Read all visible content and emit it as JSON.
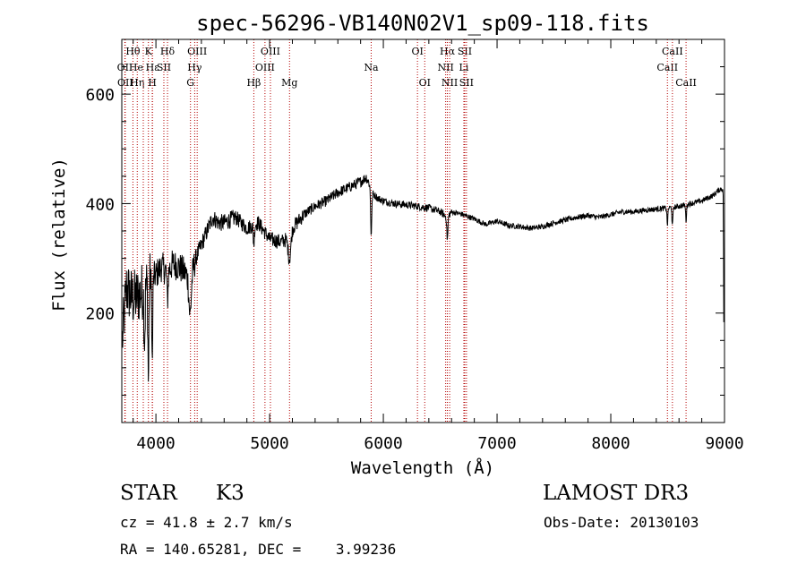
{
  "chart_data": {
    "type": "line",
    "title": "spec-56296-VB140N02V1_sp09-118.fits",
    "xlabel": "Wavelength (Å)",
    "ylabel": "Flux (relative)",
    "xlim": [
      3700,
      9000
    ],
    "ylim": [
      0,
      700
    ],
    "x_ticks": [
      {
        "value": 4000,
        "label": "4000"
      },
      {
        "value": 5000,
        "label": "5000"
      },
      {
        "value": 6000,
        "label": "6000"
      },
      {
        "value": 7000,
        "label": "7000"
      },
      {
        "value": 8000,
        "label": "8000"
      },
      {
        "value": 9000,
        "label": "9000"
      }
    ],
    "y_ticks": [
      {
        "value": 200,
        "label": "200"
      },
      {
        "value": 400,
        "label": "400"
      },
      {
        "value": 600,
        "label": "600"
      }
    ],
    "grid": false,
    "spectrum_anchors": {
      "wavelength": [
        3705,
        3740,
        3800,
        3860,
        3900,
        3950,
        4000,
        4050,
        4100,
        4150,
        4200,
        4250,
        4290,
        4300,
        4350,
        4400,
        4450,
        4500,
        4550,
        4600,
        4700,
        4800,
        4900,
        5000,
        5100,
        5150,
        5200,
        5300,
        5400,
        5500,
        5600,
        5700,
        5800,
        5850,
        5880,
        5900,
        5950,
        6000,
        6100,
        6200,
        6300,
        6400,
        6500,
        6560,
        6600,
        6700,
        6800,
        6900,
        7000,
        7100,
        7200,
        7300,
        7400,
        7500,
        7600,
        7700,
        7800,
        7900,
        8000,
        8100,
        8200,
        8300,
        8400,
        8500,
        8600,
        8700,
        8800,
        8900,
        8950,
        8995
      ],
      "flux": [
        150,
        245,
        225,
        235,
        245,
        260,
        270,
        285,
        275,
        290,
        285,
        275,
        265,
        255,
        300,
        325,
        350,
        375,
        365,
        365,
        375,
        355,
        365,
        335,
        330,
        335,
        355,
        380,
        395,
        405,
        420,
        430,
        440,
        448,
        435,
        420,
        410,
        405,
        400,
        398,
        395,
        392,
        385,
        375,
        385,
        380,
        372,
        362,
        368,
        360,
        358,
        355,
        358,
        365,
        370,
        375,
        378,
        375,
        380,
        385,
        385,
        388,
        390,
        392,
        395,
        400,
        405,
        415,
        425,
        428
      ]
    },
    "spectrum_features": [
      {
        "center": 3934,
        "depth": 180,
        "width": 4
      },
      {
        "center": 3968,
        "depth": 160,
        "width": 4
      },
      {
        "center": 3900,
        "depth": 90,
        "width": 5
      },
      {
        "center": 4102,
        "depth": 50,
        "width": 5
      },
      {
        "center": 4300,
        "depth": 60,
        "width": 10
      },
      {
        "center": 4861,
        "depth": 35,
        "width": 5
      },
      {
        "center": 5175,
        "depth": 45,
        "width": 12
      },
      {
        "center": 5893,
        "depth": 80,
        "width": 5
      },
      {
        "center": 6563,
        "depth": 40,
        "width": 5
      },
      {
        "center": 8498,
        "depth": 30,
        "width": 4
      },
      {
        "center": 8542,
        "depth": 35,
        "width": 4
      },
      {
        "center": 8662,
        "depth": 30,
        "width": 4
      },
      {
        "center": 8995,
        "depth": 260,
        "width": 3
      }
    ],
    "line_markers": [
      {
        "label": "Hθ",
        "wavelength": 3798,
        "row": 0,
        "align": "center"
      },
      {
        "label": "OII",
        "wavelength": 3727,
        "row": 1,
        "align": "center"
      },
      {
        "label": "OII",
        "wavelength": 3730,
        "row": 2,
        "align": "center"
      },
      {
        "label": "Hη",
        "wavelength": 3836,
        "row": 2,
        "align": "center"
      },
      {
        "label": "He",
        "wavelength": 3889,
        "row": 1,
        "align": "end"
      },
      {
        "label": "K",
        "wavelength": 3934,
        "row": 0,
        "align": "center"
      },
      {
        "label": "H",
        "wavelength": 3968,
        "row": 2,
        "align": "center"
      },
      {
        "label": "Hε",
        "wavelength": 3970,
        "row": 1,
        "align": "center"
      },
      {
        "label": "SII",
        "wavelength": 4070,
        "row": 1,
        "align": "center"
      },
      {
        "label": "Hδ",
        "wavelength": 4102,
        "row": 0,
        "align": "center"
      },
      {
        "label": "OIII",
        "wavelength": 4363,
        "row": 0,
        "align": "center"
      },
      {
        "label": "Hγ",
        "wavelength": 4341,
        "row": 1,
        "align": "center"
      },
      {
        "label": "G",
        "wavelength": 4304,
        "row": 2,
        "align": "center"
      },
      {
        "label": "Hβ",
        "wavelength": 4861,
        "row": 2,
        "align": "center"
      },
      {
        "label": "OIII",
        "wavelength": 5007,
        "row": 0,
        "align": "center"
      },
      {
        "label": "OIII",
        "wavelength": 4959,
        "row": 1,
        "align": "center"
      },
      {
        "label": "Mg",
        "wavelength": 5175,
        "row": 2,
        "align": "center"
      },
      {
        "label": "Na",
        "wavelength": 5893,
        "row": 1,
        "align": "center"
      },
      {
        "label": "OI",
        "wavelength": 6300,
        "row": 0,
        "align": "center"
      },
      {
        "label": "OI",
        "wavelength": 6364,
        "row": 2,
        "align": "center"
      },
      {
        "label": "Hα",
        "wavelength": 6563,
        "row": 0,
        "align": "center"
      },
      {
        "label": "NII",
        "wavelength": 6548,
        "row": 1,
        "align": "center"
      },
      {
        "label": "NII",
        "wavelength": 6583,
        "row": 2,
        "align": "center"
      },
      {
        "label": "SII",
        "wavelength": 6716,
        "row": 0,
        "align": "center"
      },
      {
        "label": "Li",
        "wavelength": 6708,
        "row": 1,
        "align": "center"
      },
      {
        "label": "SII",
        "wavelength": 6731,
        "row": 2,
        "align": "center"
      },
      {
        "label": "CaII",
        "wavelength": 8498,
        "row": 1,
        "align": "center"
      },
      {
        "label": "CaII",
        "wavelength": 8542,
        "row": 0,
        "align": "center"
      },
      {
        "label": "CaII",
        "wavelength": 8662,
        "row": 2,
        "align": "center"
      }
    ]
  },
  "info": {
    "object_class": "STAR",
    "subclass": "K3",
    "survey": "LAMOST DR3",
    "redshift_text": "cz = 41.8 ± 2.7 km/s",
    "obs_date_text": "Obs-Date: 20130103",
    "coords_text": "RA = 140.65281, DEC =    3.99236"
  },
  "colors": {
    "marker_line": "#b40000",
    "spectrum": "#000000",
    "axes": "#000000"
  }
}
